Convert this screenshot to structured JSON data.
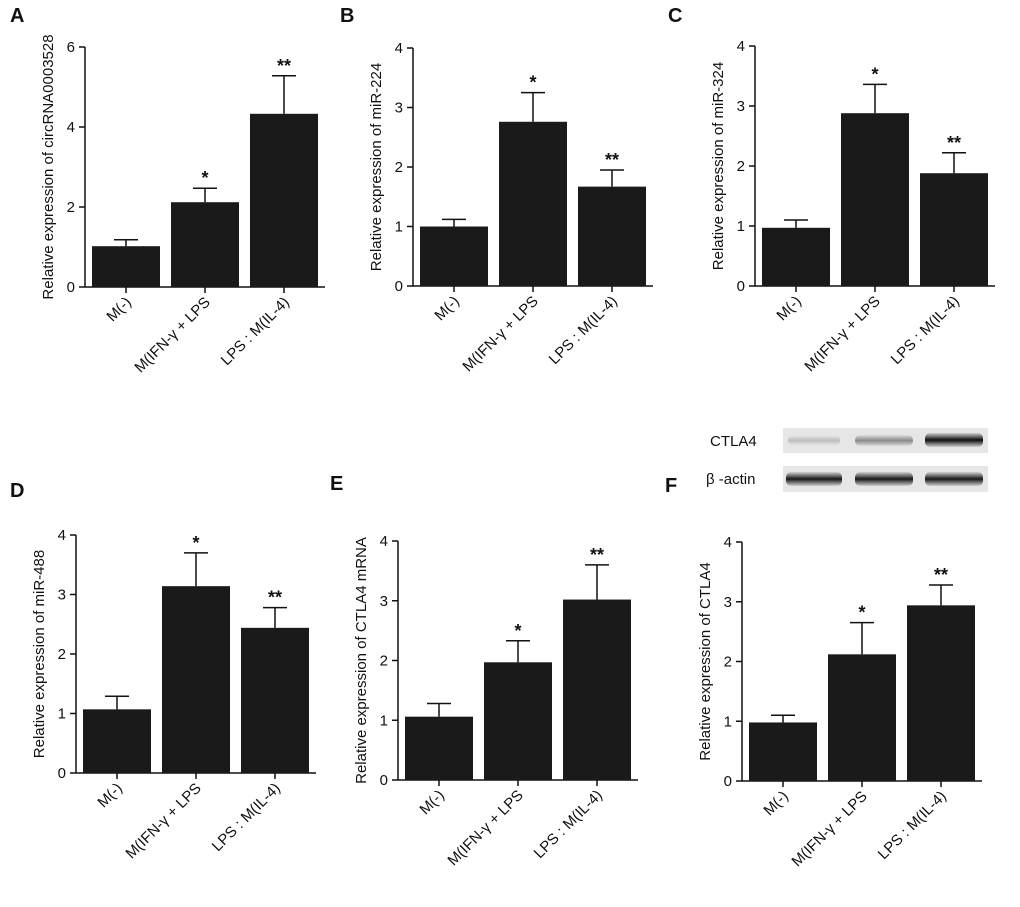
{
  "chart_data": [
    {
      "type": "bar",
      "panel": "A",
      "ylabel": "Relative expression of circRNA0003528",
      "categories": [
        "M(-)",
        "M(IFN-γ + LPS",
        "LPS : M(IL-4)"
      ],
      "values": [
        1.02,
        2.12,
        4.33
      ],
      "errors": [
        0.16,
        0.35,
        0.95
      ],
      "annotations": [
        null,
        "*",
        "**"
      ],
      "ylim": [
        0,
        6
      ],
      "yticks": [
        0,
        2,
        4,
        6
      ],
      "color": "#1a1a1a"
    },
    {
      "type": "bar",
      "panel": "B",
      "ylabel": "Relative expression of miR-224",
      "categories": [
        "M(-)",
        "M(IFN-γ + LPS",
        "LPS : M(IL-4)"
      ],
      "values": [
        1.0,
        2.76,
        1.67
      ],
      "errors": [
        0.12,
        0.49,
        0.28
      ],
      "annotations": [
        null,
        "*",
        "**"
      ],
      "ylim": [
        0,
        4
      ],
      "yticks": [
        0,
        1,
        2,
        3,
        4
      ],
      "color": "#1a1a1a"
    },
    {
      "type": "bar",
      "panel": "C",
      "ylabel": "Relative expression of miR-324",
      "categories": [
        "M(-)",
        "M(IFN-γ + LPS",
        "LPS : M(IL-4)"
      ],
      "values": [
        0.97,
        2.88,
        1.88
      ],
      "errors": [
        0.13,
        0.48,
        0.34
      ],
      "annotations": [
        null,
        "*",
        "**"
      ],
      "ylim": [
        0,
        4
      ],
      "yticks": [
        0,
        1,
        2,
        3,
        4
      ],
      "color": "#1a1a1a"
    },
    {
      "type": "bar",
      "panel": "D",
      "ylabel": "Relative expression of miR-488",
      "categories": [
        "M(-)",
        "M(IFN-γ + LPS",
        "LPS : M(IL-4)"
      ],
      "values": [
        1.07,
        3.14,
        2.44
      ],
      "errors": [
        0.22,
        0.56,
        0.34
      ],
      "annotations": [
        null,
        "*",
        "**"
      ],
      "ylim": [
        0,
        4
      ],
      "yticks": [
        0,
        1,
        2,
        3,
        4
      ],
      "color": "#1a1a1a"
    },
    {
      "type": "bar",
      "panel": "E",
      "ylabel": "Relative expression of CTLA4 mRNA",
      "categories": [
        "M(-)",
        "M(IFN-γ + LPS",
        "LPS : M(IL-4)"
      ],
      "values": [
        1.06,
        1.97,
        3.02
      ],
      "errors": [
        0.22,
        0.36,
        0.58
      ],
      "annotations": [
        null,
        "*",
        "**"
      ],
      "ylim": [
        0,
        4
      ],
      "yticks": [
        0,
        1,
        2,
        3,
        4
      ],
      "color": "#1a1a1a"
    },
    {
      "type": "bar",
      "panel": "F",
      "ylabel": "Relative expression of CTLA4",
      "categories": [
        "M(-)",
        "M(IFN-γ + LPS",
        "LPS : M(IL-4)"
      ],
      "values": [
        0.98,
        2.12,
        2.94
      ],
      "errors": [
        0.12,
        0.53,
        0.34
      ],
      "annotations": [
        null,
        "*",
        "**"
      ],
      "ylim": [
        0,
        4
      ],
      "yticks": [
        0,
        1,
        2,
        3,
        4
      ],
      "color": "#1a1a1a",
      "blot": {
        "rows": [
          "CTLA4",
          "β -actin"
        ]
      }
    }
  ]
}
